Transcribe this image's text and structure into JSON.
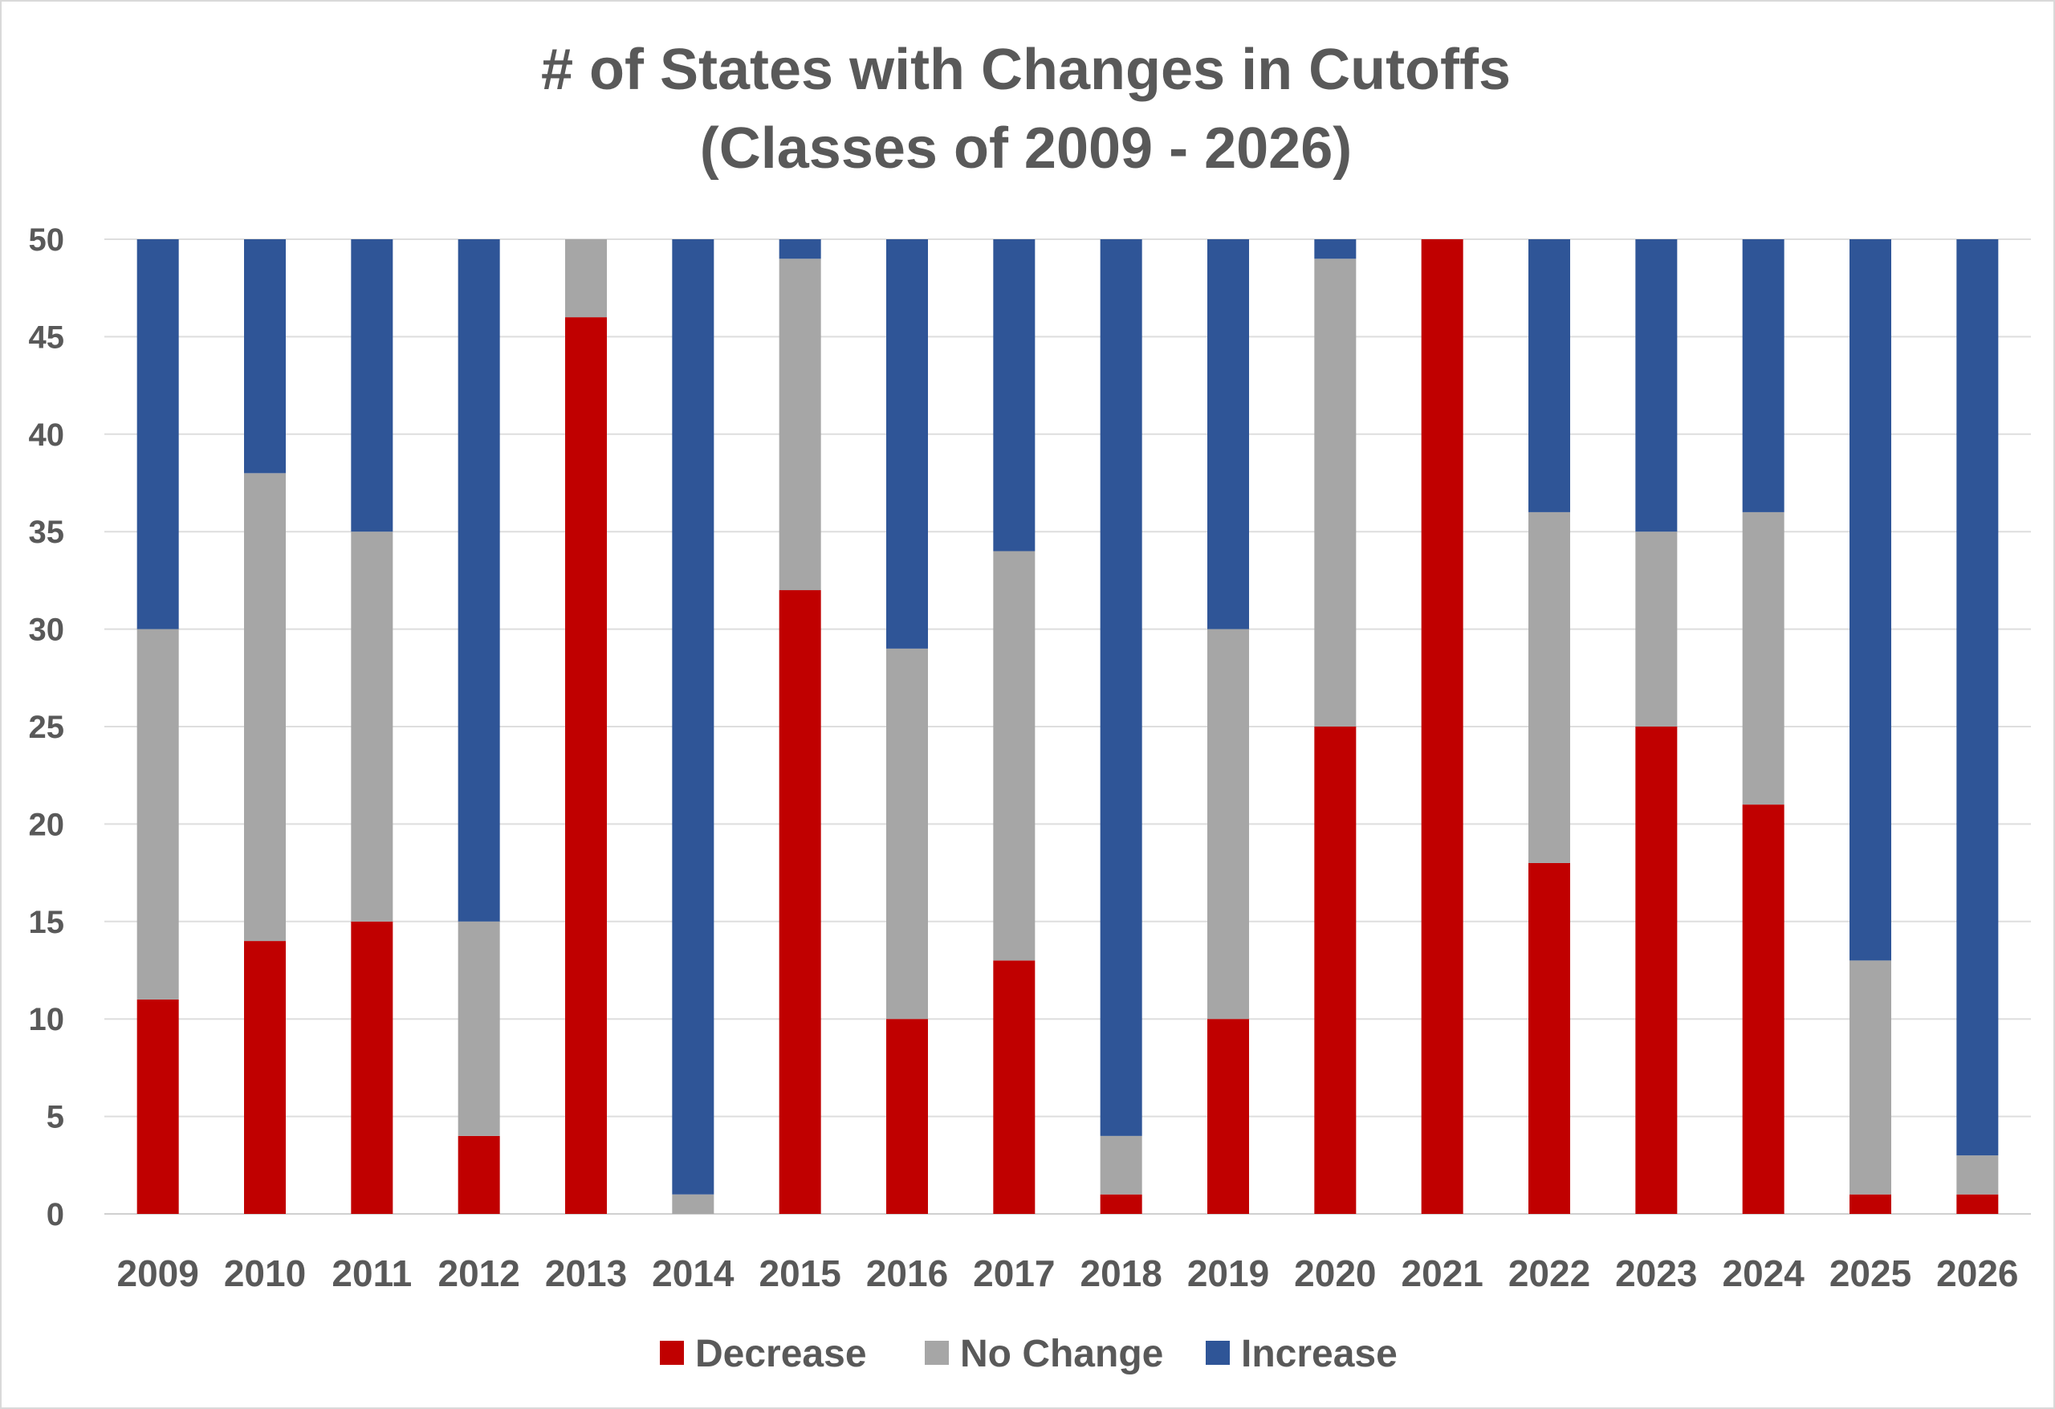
{
  "chart_data": {
    "type": "bar",
    "stacked": true,
    "title": "# of States with Changes in Cutoffs",
    "subtitle": "(Classes of 2009 - 2026)",
    "xlabel": "",
    "ylabel": "",
    "ylim": [
      0,
      50
    ],
    "yticks": [
      0,
      5,
      10,
      15,
      20,
      25,
      30,
      35,
      40,
      45,
      50
    ],
    "grid": true,
    "legend_position": "bottom",
    "categories": [
      "2009",
      "2010",
      "2011",
      "2012",
      "2013",
      "2014",
      "2015",
      "2016",
      "2017",
      "2018",
      "2019",
      "2020",
      "2021",
      "2022",
      "2023",
      "2024",
      "2025",
      "2026"
    ],
    "series": [
      {
        "name": "Decrease",
        "color": "#c00000",
        "values": [
          11,
          14,
          15,
          4,
          46,
          0,
          32,
          10,
          13,
          1,
          10,
          25,
          50,
          18,
          25,
          21,
          1,
          1
        ]
      },
      {
        "name": "No Change",
        "color": "#a6a6a6",
        "values": [
          19,
          24,
          20,
          11,
          4,
          1,
          17,
          19,
          21,
          3,
          20,
          24,
          0,
          18,
          10,
          15,
          12,
          2
        ]
      },
      {
        "name": "Increase",
        "color": "#2f5597",
        "values": [
          20,
          12,
          15,
          35,
          0,
          49,
          1,
          21,
          16,
          46,
          20,
          1,
          0,
          14,
          15,
          14,
          37,
          47
        ]
      }
    ]
  }
}
